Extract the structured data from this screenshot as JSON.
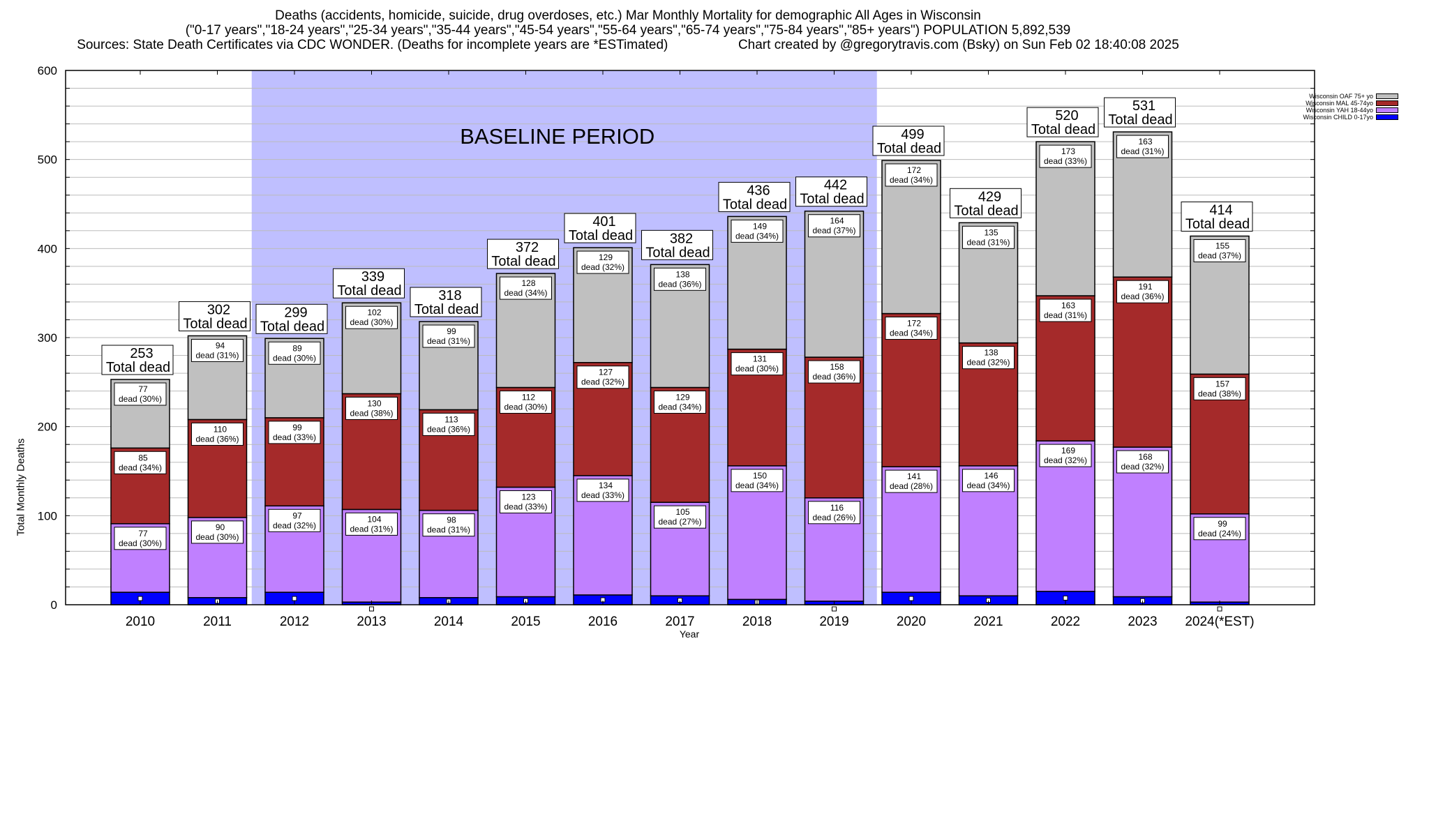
{
  "header": {
    "title_line1": "Deaths (accidents, homicide, suicide, drug overdoses, etc.) Mar Monthly Mortality for demographic All Ages in Wisconsin",
    "title_line2": "(\"0-17 years\",\"18-24 years\",\"25-34 years\",\"35-44 years\",\"45-54 years\",\"55-64 years\",\"65-74 years\",\"75-84 years\",\"85+ years\") POPULATION 5,892,539",
    "title_line3_left": "Sources: State Death Certificates via CDC WONDER. (Deaths for incomplete years are *ESTimated)",
    "title_line3_right": "Chart created by @gregorytravis.com (Bsky) on Sun Feb 02 18:40:08 2025"
  },
  "chart_data": {
    "type": "bar",
    "stacked": true,
    "title": "Deaths (accidents, homicide, suicide, drug overdoses, etc.) Mar Monthly Mortality for demographic All Ages in Wisconsin",
    "xlabel": "Year",
    "ylabel": "Total Monthly Deaths",
    "ylim": [
      0,
      600
    ],
    "yticks": [
      0,
      100,
      200,
      300,
      400,
      500,
      600
    ],
    "minor_grid_step": 20,
    "grid": true,
    "legend_position": "top-right",
    "categories": [
      "2010",
      "2011",
      "2012",
      "2013",
      "2014",
      "2015",
      "2016",
      "2017",
      "2018",
      "2019",
      "2020",
      "2021",
      "2022",
      "2023",
      "2024(*EST)"
    ],
    "annotation": {
      "text": "BASELINE PERIOD",
      "from_category": "2012",
      "to_category": "2019",
      "color": "#bfbfff"
    },
    "series": [
      {
        "name": "Wisconsin CHILD 0-17yo",
        "color": "#0000ff",
        "values": [
          14,
          8,
          14,
          3,
          8,
          9,
          11,
          10,
          6,
          4,
          14,
          10,
          15,
          9,
          3
        ],
        "labels": null
      },
      {
        "name": "Wisconsin YAH 18-44yo",
        "color": "#c080ff",
        "values": [
          77,
          90,
          97,
          104,
          98,
          123,
          134,
          105,
          150,
          116,
          141,
          146,
          169,
          168,
          99
        ],
        "pct": [
          30,
          30,
          32,
          31,
          31,
          33,
          33,
          27,
          34,
          26,
          28,
          34,
          32,
          32,
          24
        ]
      },
      {
        "name": "Wisconsin MAL 45-74yo",
        "color": "#a52a2a",
        "values": [
          85,
          110,
          99,
          130,
          113,
          112,
          127,
          129,
          131,
          158,
          172,
          138,
          163,
          191,
          157
        ],
        "pct": [
          34,
          36,
          33,
          38,
          36,
          30,
          32,
          34,
          30,
          36,
          34,
          32,
          31,
          36,
          38
        ]
      },
      {
        "name": "Wisconsin OAF 75+ yo",
        "color": "#c0c0c0",
        "values": [
          77,
          94,
          89,
          102,
          99,
          128,
          129,
          138,
          149,
          164,
          172,
          135,
          173,
          163,
          155
        ],
        "pct": [
          30,
          31,
          30,
          30,
          31,
          34,
          32,
          36,
          34,
          37,
          34,
          31,
          33,
          31,
          37
        ]
      }
    ],
    "totals": [
      253,
      302,
      299,
      339,
      318,
      372,
      401,
      382,
      436,
      442,
      499,
      429,
      520,
      531,
      414
    ],
    "total_label_suffix": "Total dead",
    "segment_label_prefix": "dead"
  },
  "legend": {
    "items": [
      {
        "label": "Wisconsin OAF 75+ yo",
        "color": "#c0c0c0"
      },
      {
        "label": "Wisconsin MAL 45-74yo",
        "color": "#a52a2a"
      },
      {
        "label": "Wisconsin YAH 18-44yo",
        "color": "#c080ff"
      },
      {
        "label": "Wisconsin CHILD 0-17yo",
        "color": "#0000ff"
      }
    ]
  }
}
